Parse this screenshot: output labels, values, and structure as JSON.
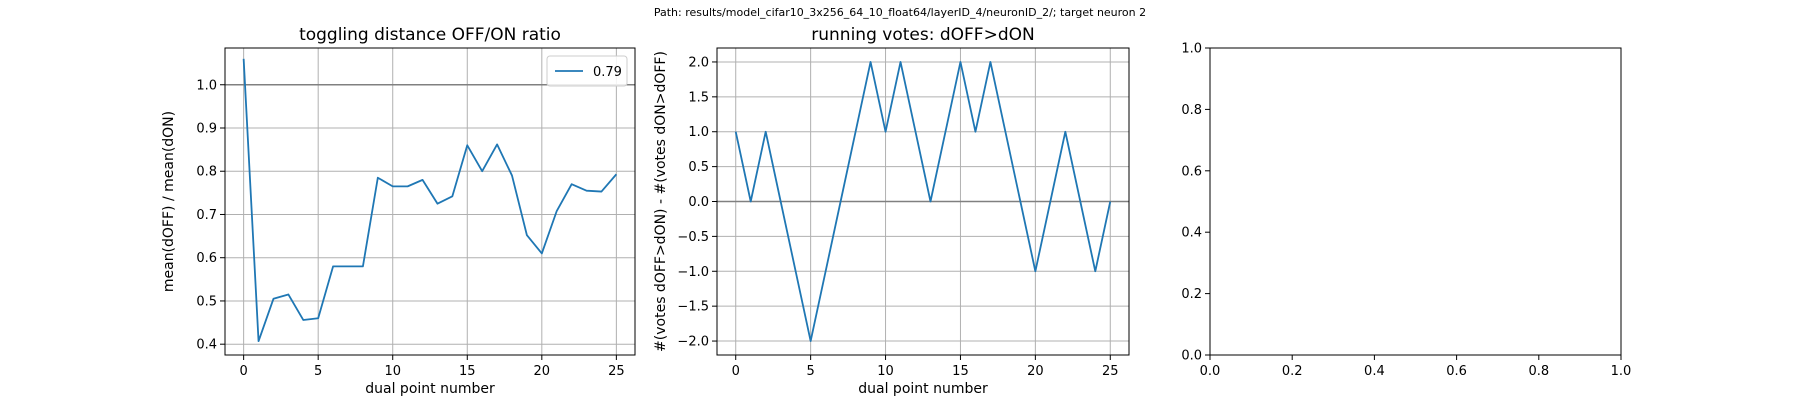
{
  "suptitle": "Path: results/model_cifar10_3x256_64_10_float64/layerID_4/neuronID_2/; target neuron 2",
  "colors": {
    "series": "#1f77b4",
    "refline": "#808080",
    "grid": "#b0b0b0",
    "axes": "#000000"
  },
  "chart_data": [
    {
      "type": "line",
      "title": "toggling distance OFF/ON ratio",
      "xlabel": "dual point number",
      "ylabel": "mean(dOFF) / mean(dON)",
      "xlim": [
        -1.25,
        26.25
      ],
      "ylim": [
        0.375,
        1.085
      ],
      "xticks": [
        0,
        5,
        10,
        15,
        20,
        25
      ],
      "yticks": [
        0.4,
        0.5,
        0.6,
        0.7,
        0.8,
        0.9,
        1.0
      ],
      "grid": true,
      "reference_line": 1.0,
      "legend": {
        "position": "top-right",
        "entries": [
          "0.79"
        ]
      },
      "series": [
        {
          "name": "0.79",
          "x": [
            0,
            1,
            2,
            3,
            4,
            5,
            6,
            7,
            8,
            9,
            10,
            11,
            12,
            13,
            14,
            15,
            16,
            17,
            18,
            19,
            20,
            21,
            22,
            23,
            24,
            25
          ],
          "values": [
            1.06,
            0.407,
            0.505,
            0.515,
            0.456,
            0.46,
            0.58,
            0.58,
            0.58,
            0.785,
            0.765,
            0.765,
            0.78,
            0.725,
            0.742,
            0.86,
            0.8,
            0.862,
            0.79,
            0.652,
            0.61,
            0.708,
            0.77,
            0.755,
            0.753,
            0.793
          ]
        }
      ]
    },
    {
      "type": "line",
      "title": "running votes: dOFF>dON",
      "xlabel": "dual point number",
      "ylabel": "#(votes dOFF>dON) - #(votes dON>dOFF)",
      "xlim": [
        -1.25,
        26.25
      ],
      "ylim": [
        -2.2,
        2.2
      ],
      "xticks": [
        0,
        5,
        10,
        15,
        20,
        25
      ],
      "yticks": [
        -2.0,
        -1.5,
        -1.0,
        -0.5,
        0.0,
        0.5,
        1.0,
        1.5,
        2.0
      ],
      "grid": true,
      "reference_line": 0.0,
      "series": [
        {
          "x": [
            0,
            1,
            2,
            3,
            4,
            5,
            6,
            7,
            8,
            9,
            10,
            11,
            12,
            13,
            14,
            15,
            16,
            17,
            18,
            19,
            20,
            21,
            22,
            23,
            24,
            25
          ],
          "values": [
            1,
            0,
            1,
            0,
            -1,
            -2,
            -1,
            0,
            1,
            2,
            1,
            2,
            1,
            0,
            1,
            2,
            1,
            2,
            1,
            0,
            -1,
            0,
            1,
            0,
            -1,
            0
          ]
        }
      ]
    },
    {
      "type": "line",
      "title": "",
      "xlabel": "",
      "ylabel": "",
      "xlim": [
        0,
        1
      ],
      "ylim": [
        0,
        1
      ],
      "xticks": [
        0.0,
        0.2,
        0.4,
        0.6,
        0.8,
        1.0
      ],
      "yticks": [
        0.0,
        0.2,
        0.4,
        0.6,
        0.8,
        1.0
      ],
      "grid": false,
      "series": []
    }
  ]
}
